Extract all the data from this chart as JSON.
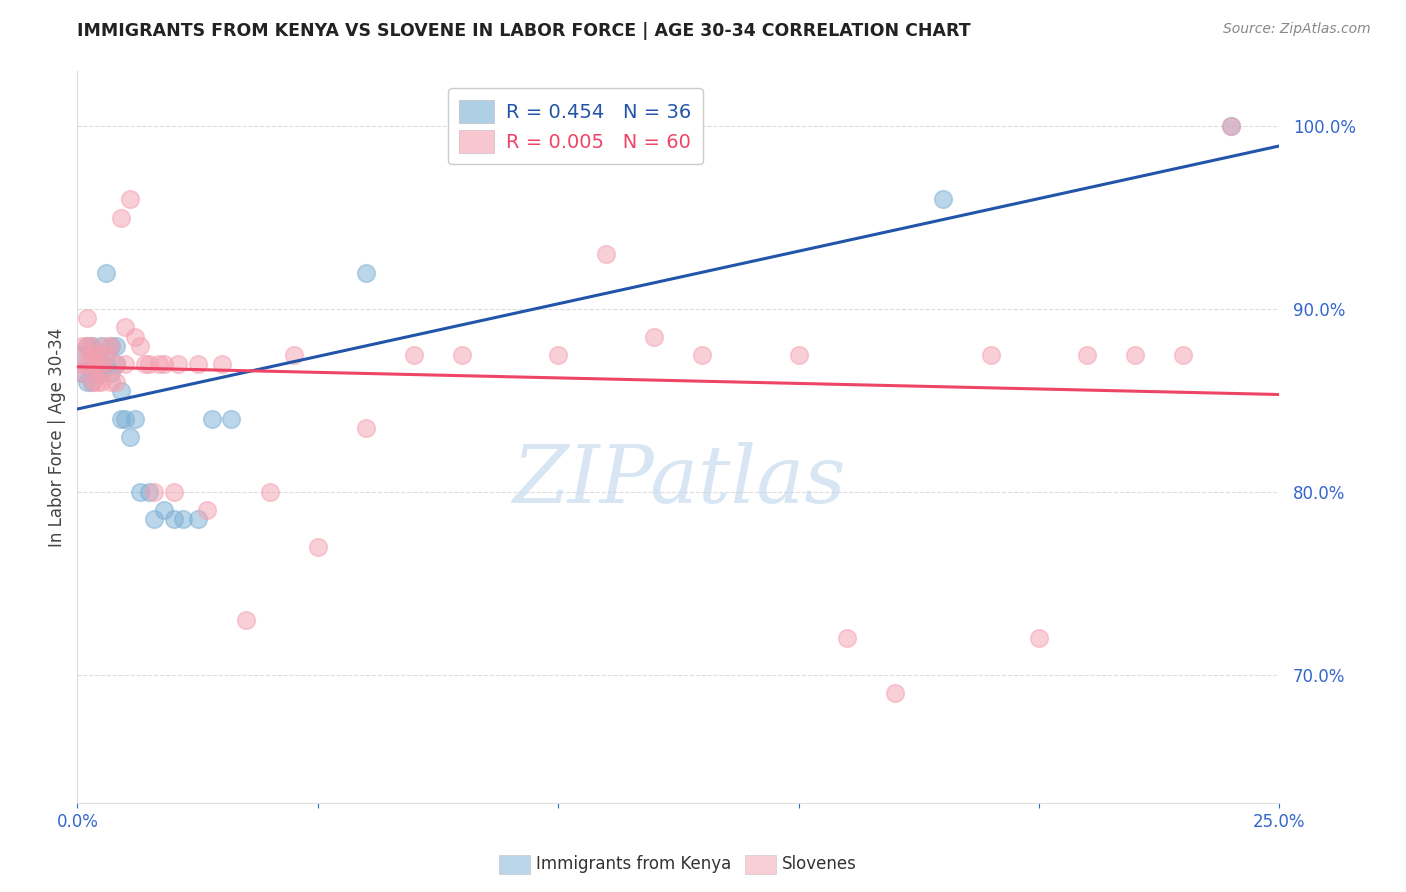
{
  "title": "IMMIGRANTS FROM KENYA VS SLOVENE IN LABOR FORCE | AGE 30-34 CORRELATION CHART",
  "source": "Source: ZipAtlas.com",
  "ylabel": "In Labor Force | Age 30-34",
  "ytick_labels": [
    "100.0%",
    "90.0%",
    "80.0%",
    "70.0%"
  ],
  "ytick_values": [
    1.0,
    0.9,
    0.8,
    0.7
  ],
  "xlim": [
    0.0,
    0.25
  ],
  "ylim": [
    0.63,
    1.03
  ],
  "kenya_R": 0.454,
  "kenya_N": 36,
  "slovene_R": 0.005,
  "slovene_N": 60,
  "kenya_color": "#7BAFD4",
  "slovene_color": "#F4A0B0",
  "trendline_kenya_color": "#2255AA",
  "trendline_slovene_color": "#EE4466",
  "watermark_text": "ZIPatlas",
  "watermark_color": "#C8DCF0",
  "legend_label_kenya": "Immigrants from Kenya",
  "legend_label_slovene": "Slovenes",
  "kenya_x": [
    0.001,
    0.001,
    0.002,
    0.002,
    0.003,
    0.003,
    0.003,
    0.004,
    0.004,
    0.004,
    0.005,
    0.005,
    0.005,
    0.006,
    0.006,
    0.007,
    0.007,
    0.008,
    0.008,
    0.009,
    0.009,
    0.01,
    0.011,
    0.012,
    0.013,
    0.015,
    0.016,
    0.018,
    0.02,
    0.022,
    0.025,
    0.028,
    0.032,
    0.06,
    0.18,
    0.24
  ],
  "kenya_y": [
    0.875,
    0.865,
    0.88,
    0.86,
    0.88,
    0.87,
    0.86,
    0.875,
    0.865,
    0.87,
    0.88,
    0.87,
    0.865,
    0.92,
    0.87,
    0.88,
    0.865,
    0.88,
    0.87,
    0.855,
    0.84,
    0.84,
    0.83,
    0.84,
    0.8,
    0.8,
    0.785,
    0.79,
    0.785,
    0.785,
    0.785,
    0.84,
    0.84,
    0.92,
    0.96,
    1.0
  ],
  "slovene_x": [
    0.001,
    0.001,
    0.001,
    0.002,
    0.002,
    0.002,
    0.003,
    0.003,
    0.003,
    0.003,
    0.004,
    0.004,
    0.004,
    0.005,
    0.005,
    0.005,
    0.006,
    0.006,
    0.007,
    0.007,
    0.008,
    0.008,
    0.009,
    0.01,
    0.01,
    0.011,
    0.012,
    0.013,
    0.014,
    0.015,
    0.016,
    0.017,
    0.018,
    0.02,
    0.021,
    0.025,
    0.027,
    0.03,
    0.035,
    0.04,
    0.045,
    0.05,
    0.06,
    0.07,
    0.08,
    0.085,
    0.09,
    0.1,
    0.11,
    0.12,
    0.13,
    0.15,
    0.16,
    0.17,
    0.19,
    0.2,
    0.21,
    0.22,
    0.23,
    0.24
  ],
  "slovene_y": [
    0.88,
    0.87,
    0.865,
    0.895,
    0.88,
    0.87,
    0.88,
    0.875,
    0.87,
    0.86,
    0.875,
    0.87,
    0.86,
    0.87,
    0.865,
    0.86,
    0.88,
    0.875,
    0.88,
    0.86,
    0.87,
    0.86,
    0.95,
    0.89,
    0.87,
    0.96,
    0.885,
    0.88,
    0.87,
    0.87,
    0.8,
    0.87,
    0.87,
    0.8,
    0.87,
    0.87,
    0.79,
    0.87,
    0.73,
    0.8,
    0.875,
    0.77,
    0.835,
    0.875,
    0.875,
    1.0,
    1.0,
    0.875,
    0.93,
    0.885,
    0.875,
    0.875,
    0.72,
    0.69,
    0.875,
    0.72,
    0.875,
    0.875,
    0.875,
    1.0
  ],
  "trendline_x_start": 0.0,
  "trendline_x_end": 0.25
}
